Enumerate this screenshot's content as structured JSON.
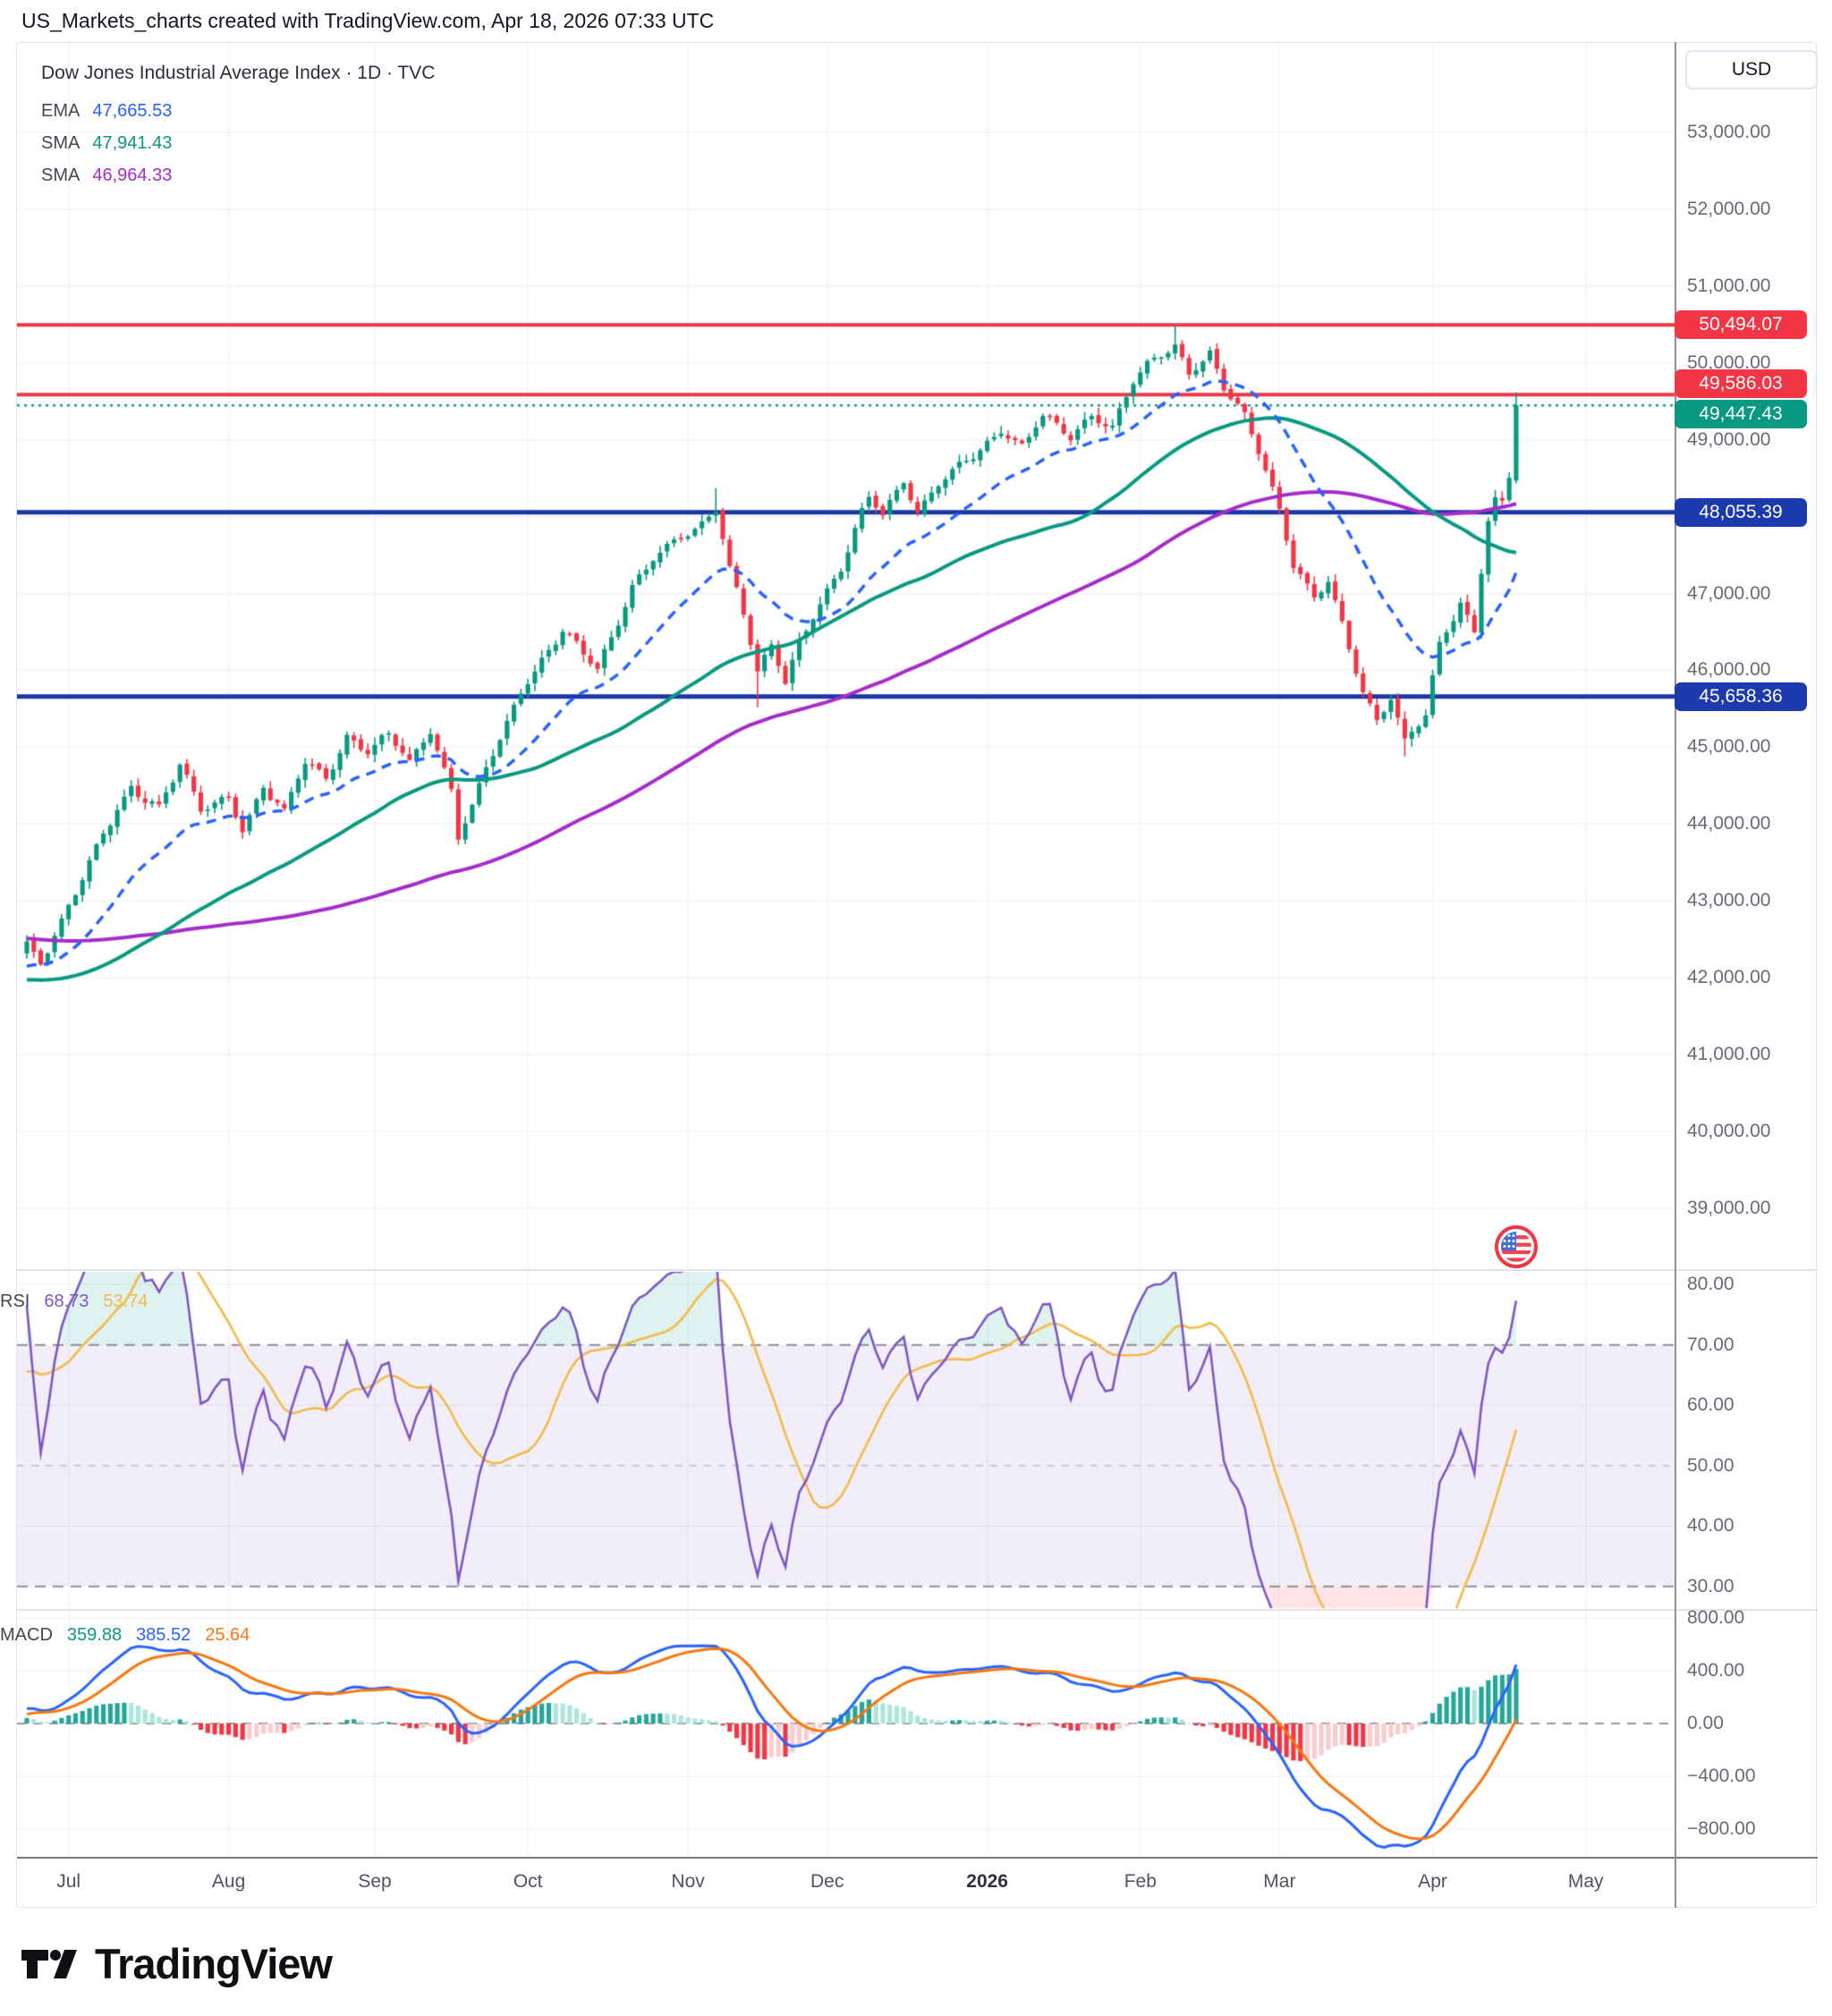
{
  "header": {
    "title": "US_Markets_charts created with TradingView.com, Apr 18, 2026 07:33 UTC"
  },
  "legend": {
    "title": "Dow Jones Industrial Average Index · 1D · TVC",
    "rows": [
      {
        "label": "EMA",
        "value": "47,665.53",
        "color": "#2962ff"
      },
      {
        "label": "SMA",
        "value": "47,941.43",
        "color": "#089981"
      },
      {
        "label": "SMA",
        "value": "46,964.33",
        "color": "#a62cc9"
      }
    ]
  },
  "rsi_legend": {
    "label": "RSI",
    "value1": "68.73",
    "value2": "53.74",
    "color1": "#7e57c2",
    "color2": "#f3ba4a"
  },
  "macd_legend": {
    "label": "MACD",
    "value1": "359.88",
    "value2": "385.52",
    "value3": "25.64",
    "color1": "#089981",
    "color2": "#2962ff",
    "color3": "#f7770f"
  },
  "price_scale": {
    "currency": "USD",
    "ticks": [
      {
        "label": "53,000.00",
        "value": 53000
      },
      {
        "label": "52,000.00",
        "value": 52000
      },
      {
        "label": "51,000.00",
        "value": 51000
      },
      {
        "label": "50,000.00",
        "value": 50000
      },
      {
        "label": "49,000.00",
        "value": 49000
      },
      {
        "label": "47,000.00",
        "value": 47000
      },
      {
        "label": "46,000.00",
        "value": 46000
      },
      {
        "label": "45,000.00",
        "value": 45000
      },
      {
        "label": "44,000.00",
        "value": 44000
      },
      {
        "label": "43,000.00",
        "value": 43000
      },
      {
        "label": "42,000.00",
        "value": 42000
      },
      {
        "label": "41,000.00",
        "value": 41000
      },
      {
        "label": "40,000.00",
        "value": 40000
      },
      {
        "label": "39,000.00",
        "value": 39000
      }
    ]
  },
  "rsi_scale": {
    "ticks": [
      {
        "label": "80.00",
        "value": 80
      },
      {
        "label": "70.00",
        "value": 70
      },
      {
        "label": "60.00",
        "value": 60
      },
      {
        "label": "50.00",
        "value": 50
      },
      {
        "label": "40.00",
        "value": 40
      },
      {
        "label": "30.00",
        "value": 30
      }
    ]
  },
  "macd_scale": {
    "ticks": [
      {
        "label": "800.00",
        "value": 800
      },
      {
        "label": "400.00",
        "value": 400
      },
      {
        "label": "0.00",
        "value": 0
      },
      {
        "label": "−400.00",
        "value": -400
      },
      {
        "label": "−800.00",
        "value": -800
      }
    ]
  },
  "footer": {
    "brand": "TradingView"
  },
  "chart_data": {
    "type": "candlestick",
    "title": "Dow Jones Industrial Average Index",
    "timeframe": "1D",
    "exchange": "TVC",
    "currency": "USD",
    "as_of": "Apr 18, 2026 07:33 UTC",
    "days_total": 215,
    "x_axis": {
      "months": [
        {
          "label": "Jul",
          "day_index": 6
        },
        {
          "label": "Aug",
          "day_index": 29
        },
        {
          "label": "Sep",
          "day_index": 50
        },
        {
          "label": "Oct",
          "day_index": 72
        },
        {
          "label": "Nov",
          "day_index": 95
        },
        {
          "label": "Dec",
          "day_index": 115
        },
        {
          "label": "2026",
          "day_index": 138,
          "bold": true
        },
        {
          "label": "Feb",
          "day_index": 160
        },
        {
          "label": "Mar",
          "day_index": 180
        },
        {
          "label": "Apr",
          "day_index": 202
        },
        {
          "label": "May",
          "day_index": 224
        }
      ]
    },
    "y_axis": {
      "price_range": [
        38209,
        54163
      ],
      "rsi_range": [
        26.4,
        82.1
      ],
      "macd_range": [
        -1010,
        854
      ],
      "price_grid_values": [
        53000,
        52000,
        51000,
        50000,
        49000,
        48000,
        47000,
        46000,
        45000,
        44000,
        43000,
        42000,
        41000,
        40000,
        39000
      ],
      "rsi_grid_solid": [
        80,
        60,
        40
      ],
      "rsi_grid_dashed_dark": [
        70,
        30
      ],
      "rsi_grid_dashed_light": [
        50
      ],
      "macd_grid_solid": [
        800,
        400,
        -400,
        -800
      ],
      "macd_grid_dashed": [
        0
      ]
    },
    "price_levels": [
      {
        "value": 50494.07,
        "color": "#f23645",
        "style": "solid",
        "width": 4,
        "role": "resistance"
      },
      {
        "value": 49586.03,
        "color": "#f23645",
        "style": "solid",
        "width": 4,
        "role": "resistance"
      },
      {
        "value": 49447.43,
        "color": "#089981",
        "style": "dotted",
        "width": 2.5,
        "role": "last-price"
      },
      {
        "value": 48055.39,
        "color": "#1b36a6",
        "style": "solid",
        "width": 5,
        "role": "support"
      },
      {
        "value": 45658.36,
        "color": "#1b36a6",
        "style": "solid",
        "width": 5,
        "role": "support"
      }
    ],
    "axis_tags": [
      {
        "label": "50,494.07",
        "value": 50494.07,
        "bg": "#f23645",
        "nudge": 0
      },
      {
        "label": "49,586.03",
        "value": 49586.03,
        "bg": "#f23645",
        "nudge": -12
      },
      {
        "label": "49,447.43",
        "value": 49447.43,
        "bg": "#089981",
        "nudge": 10
      },
      {
        "label": "48,055.39",
        "value": 48055.39,
        "bg": "#1c3aad",
        "nudge": 0
      },
      {
        "label": "45,658.36",
        "value": 45658.36,
        "bg": "#1c3aad",
        "nudge": 0
      }
    ],
    "indicators": {
      "ema": {
        "period": 20,
        "color": "#2962ff",
        "style": "dashed",
        "last": 47665.53
      },
      "sma_fast": {
        "period": 50,
        "color": "#089981",
        "style": "solid",
        "last": 47941.43
      },
      "sma_slow": {
        "period": 100,
        "color": "#a62cc9",
        "style": "solid",
        "last": 46964.33
      },
      "rsi": {
        "period": 14,
        "color": "#7e57c2",
        "last": 68.73,
        "band": [
          30,
          70
        ],
        "mid": 50
      },
      "rsi_ma": {
        "period": 14,
        "color": "#f3ba4a",
        "last": 53.74
      },
      "macd": {
        "fast": 12,
        "slow": 26,
        "signal_period": 9,
        "macd_color": "#2962ff",
        "signal_color": "#f7770f",
        "last_histogram": 359.88,
        "last_macd": 385.52,
        "last_signal": 25.64
      }
    },
    "candle_colors": {
      "up": "#089981",
      "down": "#f23645"
    },
    "histogram_colors": {
      "pos_rise": "#26a69a",
      "pos_fall": "#ace5dc",
      "neg_fall": "#f23645",
      "neg_rise": "#fccbcd"
    },
    "close_anchors_estimated": [
      [
        0,
        42400
      ],
      [
        2,
        42180
      ],
      [
        6,
        42950
      ],
      [
        11,
        43850
      ],
      [
        15,
        44450
      ],
      [
        19,
        44250
      ],
      [
        22,
        44800
      ],
      [
        25,
        44150
      ],
      [
        29,
        44350
      ],
      [
        31,
        43950
      ],
      [
        34,
        44500
      ],
      [
        37,
        44150
      ],
      [
        40,
        44800
      ],
      [
        43,
        44600
      ],
      [
        46,
        45150
      ],
      [
        49,
        44950
      ],
      [
        52,
        45150
      ],
      [
        55,
        44800
      ],
      [
        58,
        45250
      ],
      [
        61,
        44450
      ],
      [
        62,
        43850
      ],
      [
        64,
        44200
      ],
      [
        66,
        44700
      ],
      [
        69,
        45300
      ],
      [
        71,
        45750
      ],
      [
        74,
        46150
      ],
      [
        77,
        46500
      ],
      [
        79,
        46300
      ],
      [
        82,
        46000
      ],
      [
        84,
        46450
      ],
      [
        87,
        47100
      ],
      [
        90,
        47450
      ],
      [
        94,
        47700
      ],
      [
        97,
        47900
      ],
      [
        99,
        48150
      ],
      [
        101,
        47350
      ],
      [
        103,
        46750
      ],
      [
        105,
        45950
      ],
      [
        107,
        46300
      ],
      [
        109,
        45850
      ],
      [
        111,
        46400
      ],
      [
        114,
        46900
      ],
      [
        117,
        47300
      ],
      [
        119,
        47800
      ],
      [
        121,
        48250
      ],
      [
        123,
        48050
      ],
      [
        126,
        48500
      ],
      [
        128,
        48050
      ],
      [
        131,
        48400
      ],
      [
        136,
        48800
      ],
      [
        140,
        49150
      ],
      [
        143,
        48900
      ],
      [
        146,
        49300
      ],
      [
        150,
        49050
      ],
      [
        153,
        49350
      ],
      [
        156,
        49150
      ],
      [
        159,
        49750
      ],
      [
        162,
        50050
      ],
      [
        165,
        50250
      ],
      [
        167,
        49900
      ],
      [
        170,
        50100
      ],
      [
        172,
        49650
      ],
      [
        175,
        49300
      ],
      [
        178,
        48650
      ],
      [
        180,
        48100
      ],
      [
        182,
        47400
      ],
      [
        185,
        46900
      ],
      [
        187,
        47150
      ],
      [
        190,
        46300
      ],
      [
        192,
        45750
      ],
      [
        194,
        45350
      ],
      [
        196,
        45650
      ],
      [
        198,
        45050
      ],
      [
        201,
        45400
      ],
      [
        203,
        46350
      ],
      [
        206,
        46900
      ],
      [
        208,
        46500
      ],
      [
        209,
        47300
      ],
      [
        210,
        47950
      ],
      [
        211,
        48200
      ],
      [
        212,
        48150
      ],
      [
        213,
        48500
      ],
      [
        214,
        49447.43
      ]
    ],
    "prehistory_anchors": [
      [
        -110,
        42600
      ],
      [
        -85,
        43350
      ],
      [
        -60,
        42950
      ],
      [
        -40,
        41900
      ],
      [
        -25,
        41650
      ],
      [
        -12,
        42050
      ],
      [
        -1,
        42330
      ]
    ],
    "pinned_points": {
      "99": {
        "high": 48370
      },
      "105": {
        "low": 45520
      },
      "165": {
        "high": 50494.07
      },
      "198": {
        "low": 44880
      },
      "214": {
        "open": 48470,
        "high": 49620,
        "low": 48430,
        "close": 49447.43
      }
    }
  }
}
